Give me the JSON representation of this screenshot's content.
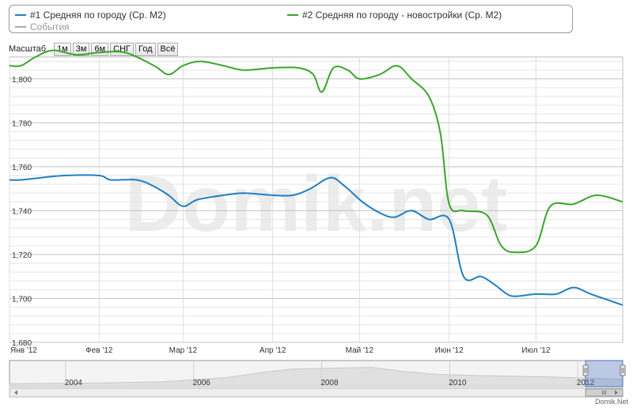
{
  "legend": {
    "items": [
      {
        "label": "#1 Средняя по городу (Ср. М2)",
        "color": "#1f7fc4"
      },
      {
        "label": "#2 Средняя по городу - новостройки (Ср. М2)",
        "color": "#3aa52a"
      },
      {
        "label": "События",
        "color": "#aaaaaa"
      }
    ]
  },
  "scale": {
    "label": "Масштаб",
    "buttons": [
      "1м",
      "3м",
      "6м",
      "СНГ",
      "Год",
      "Всё"
    ]
  },
  "watermark": "Domik.net",
  "credit": "Domik.Net",
  "chart_data": {
    "type": "line",
    "x_axis": {
      "range": [
        "2012-01-01",
        "2012-07-31"
      ],
      "tick_labels": [
        {
          "date": "2012-01-01",
          "label": "Янв '12"
        },
        {
          "date": "2012-02-01",
          "label": "Фев '12"
        },
        {
          "date": "2012-03-01",
          "label": "Мар '12"
        },
        {
          "date": "2012-04-01",
          "label": "Апр '12"
        },
        {
          "date": "2012-05-01",
          "label": "Май '12"
        },
        {
          "date": "2012-06-01",
          "label": "Июн '12"
        },
        {
          "date": "2012-07-01",
          "label": "Июл '12"
        }
      ]
    },
    "y_axis": {
      "range": [
        1680,
        1810
      ],
      "tick_labels": [
        {
          "value": 1680,
          "label": "1,680"
        },
        {
          "value": 1700,
          "label": "1,700"
        },
        {
          "value": 1720,
          "label": "1,720"
        },
        {
          "value": 1740,
          "label": "1,740"
        },
        {
          "value": 1760,
          "label": "1,760"
        },
        {
          "value": 1780,
          "label": "1,780"
        },
        {
          "value": 1800,
          "label": "1,800"
        }
      ]
    },
    "series": [
      {
        "name": "#1 Средняя по городу (Ср. М2)",
        "color": "#1f7fc4",
        "points": [
          [
            "2012-01-01",
            1754
          ],
          [
            "2012-01-05",
            1754
          ],
          [
            "2012-01-12",
            1755
          ],
          [
            "2012-01-20",
            1756
          ],
          [
            "2012-02-01",
            1756
          ],
          [
            "2012-02-05",
            1754
          ],
          [
            "2012-02-14",
            1754
          ],
          [
            "2012-02-20",
            1751
          ],
          [
            "2012-02-25",
            1747
          ],
          [
            "2012-03-01",
            1742
          ],
          [
            "2012-03-06",
            1745
          ],
          [
            "2012-03-15",
            1747
          ],
          [
            "2012-03-22",
            1748
          ],
          [
            "2012-04-01",
            1747
          ],
          [
            "2012-04-08",
            1747
          ],
          [
            "2012-04-14",
            1750
          ],
          [
            "2012-04-21",
            1755
          ],
          [
            "2012-04-26",
            1751
          ],
          [
            "2012-05-02",
            1744
          ],
          [
            "2012-05-08",
            1739
          ],
          [
            "2012-05-13",
            1737
          ],
          [
            "2012-05-19",
            1740
          ],
          [
            "2012-05-25",
            1736
          ],
          [
            "2012-06-01",
            1736
          ],
          [
            "2012-06-06",
            1710
          ],
          [
            "2012-06-12",
            1710
          ],
          [
            "2012-06-17",
            1706
          ],
          [
            "2012-06-21",
            1702
          ],
          [
            "2012-06-24",
            1701
          ],
          [
            "2012-07-01",
            1702
          ],
          [
            "2012-07-08",
            1702
          ],
          [
            "2012-07-14",
            1705
          ],
          [
            "2012-07-20",
            1702
          ],
          [
            "2012-07-31",
            1697
          ]
        ]
      },
      {
        "name": "#2 Средняя по городу - новостройки (Ср. М2)",
        "color": "#3aa52a",
        "points": [
          [
            "2012-01-01",
            1806
          ],
          [
            "2012-01-05",
            1806
          ],
          [
            "2012-01-10",
            1810
          ],
          [
            "2012-01-16",
            1813
          ],
          [
            "2012-01-24",
            1811
          ],
          [
            "2012-02-01",
            1812
          ],
          [
            "2012-02-10",
            1812
          ],
          [
            "2012-02-20",
            1806
          ],
          [
            "2012-02-25",
            1802
          ],
          [
            "2012-03-01",
            1806
          ],
          [
            "2012-03-07",
            1808
          ],
          [
            "2012-03-15",
            1806
          ],
          [
            "2012-03-22",
            1804
          ],
          [
            "2012-04-01",
            1805
          ],
          [
            "2012-04-10",
            1805
          ],
          [
            "2012-04-15",
            1802
          ],
          [
            "2012-04-18",
            1794
          ],
          [
            "2012-04-22",
            1805
          ],
          [
            "2012-04-27",
            1804
          ],
          [
            "2012-05-01",
            1800
          ],
          [
            "2012-05-08",
            1802
          ],
          [
            "2012-05-14",
            1806
          ],
          [
            "2012-05-19",
            1800
          ],
          [
            "2012-05-25",
            1792
          ],
          [
            "2012-05-29",
            1775
          ],
          [
            "2012-06-01",
            1743
          ],
          [
            "2012-06-06",
            1740
          ],
          [
            "2012-06-14",
            1738
          ],
          [
            "2012-06-19",
            1724
          ],
          [
            "2012-06-24",
            1721
          ],
          [
            "2012-07-01",
            1724
          ],
          [
            "2012-07-06",
            1742
          ],
          [
            "2012-07-14",
            1743
          ],
          [
            "2012-07-22",
            1747
          ],
          [
            "2012-07-31",
            1744
          ]
        ]
      }
    ],
    "grid": true,
    "legend_position": "top",
    "navigator": {
      "labels": [
        "2004",
        "2006",
        "2008",
        "2010",
        "2012"
      ],
      "range": [
        "2003-01-01",
        "2012-07-31"
      ],
      "selected_range": [
        "2012-01-01",
        "2012-07-31"
      ],
      "profile": [
        [
          "2003-01-01",
          0.12
        ],
        [
          "2004-06-01",
          0.15
        ],
        [
          "2005-06-01",
          0.2
        ],
        [
          "2006-06-01",
          0.38
        ],
        [
          "2007-01-01",
          0.6
        ],
        [
          "2007-06-01",
          0.72
        ],
        [
          "2008-03-01",
          0.76
        ],
        [
          "2008-09-01",
          0.78
        ],
        [
          "2009-03-01",
          0.62
        ],
        [
          "2009-09-01",
          0.5
        ],
        [
          "2010-06-01",
          0.45
        ],
        [
          "2011-06-01",
          0.4
        ],
        [
          "2012-07-31",
          0.3
        ]
      ]
    }
  }
}
